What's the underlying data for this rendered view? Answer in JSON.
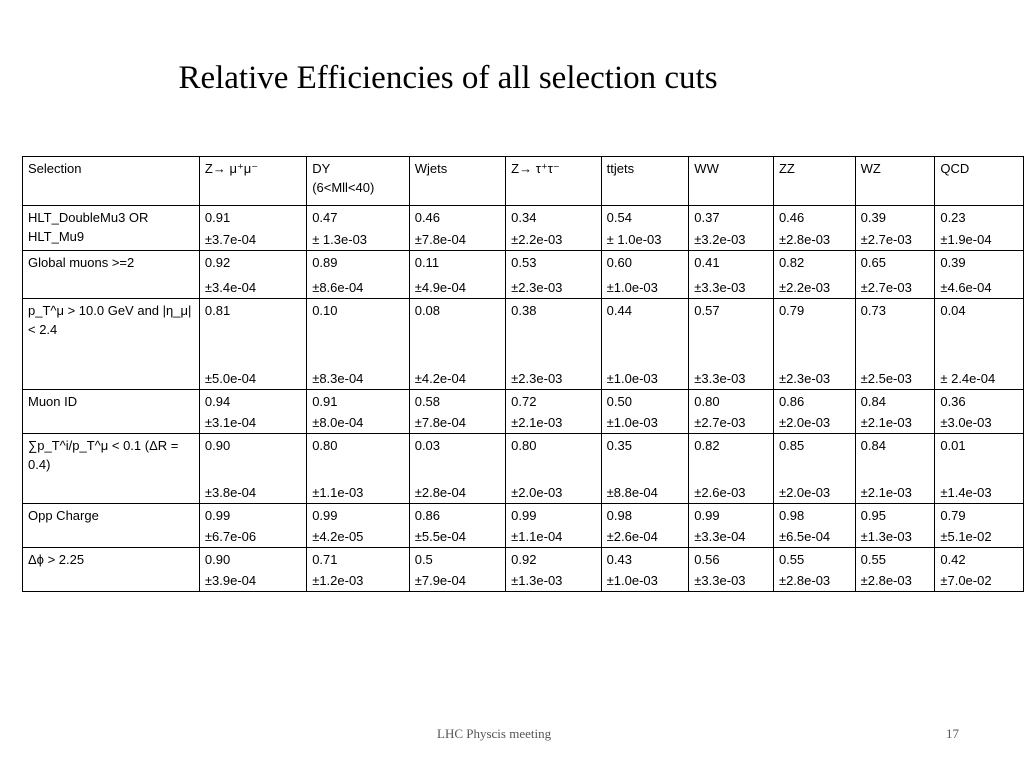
{
  "title": "Relative Efficiencies of all selection cuts",
  "table": {
    "headers": [
      "Selection",
      "Z→ μ⁺μ⁻",
      "DY\n(6<Mll<40)",
      "Wjets",
      "Z→ τ⁺τ⁻",
      "ttjets",
      "WW",
      "ZZ",
      "WZ",
      "QCD"
    ],
    "rows": [
      {
        "selection": "HLT_DoubleMu3    OR HLT_Mu9",
        "cells": [
          {
            "v": "0.91",
            "e": "±3.7e-04"
          },
          {
            "v": "0.47",
            "e": "± 1.3e-03"
          },
          {
            "v": "0.46",
            "e": "±7.8e-04"
          },
          {
            "v": "0.34",
            "e": "±2.2e-03"
          },
          {
            "v": "0.54",
            "e": "± 1.0e-03"
          },
          {
            "v": "0.37",
            "e": "±3.2e-03"
          },
          {
            "v": "0.46",
            "e": "±2.8e-03"
          },
          {
            "v": "0.39",
            "e": "±2.7e-03"
          },
          {
            "v": "0.23",
            "e": "±1.9e-04"
          }
        ]
      },
      {
        "selection": "Global muons >=2",
        "cells": [
          {
            "v": "0.92",
            "e": "±3.4e-04"
          },
          {
            "v": "0.89",
            "e": "±8.6e-04"
          },
          {
            "v": "0.11",
            "e": "±4.9e-04"
          },
          {
            "v": "0.53",
            "e": "±2.3e-03"
          },
          {
            "v": "0.60",
            "e": "±1.0e-03"
          },
          {
            "v": "0.41",
            "e": "±3.3e-03"
          },
          {
            "v": "0.82",
            "e": "±2.2e-03"
          },
          {
            "v": "0.65",
            "e": "±2.7e-03"
          },
          {
            "v": "0.39",
            "e": "±4.6e-04"
          }
        ]
      },
      {
        "selection": "p_T^μ  > 10.0 GeV and |η_μ| < 2.4",
        "cells": [
          {
            "v": "0.81",
            "e": "±5.0e-04"
          },
          {
            "v": "0.10",
            "e": "±8.3e-04"
          },
          {
            "v": "0.08",
            "e": "±4.2e-04"
          },
          {
            "v": "0.38",
            "e": "±2.3e-03"
          },
          {
            "v": "0.44",
            "e": "±1.0e-03"
          },
          {
            "v": "0.57",
            "e": "±3.3e-03"
          },
          {
            "v": "0.79",
            "e": "±2.3e-03"
          },
          {
            "v": "0.73",
            "e": "±2.5e-03"
          },
          {
            "v": "0.04",
            "e": "±    2.4e-04"
          }
        ]
      },
      {
        "selection": "Muon ID",
        "cells": [
          {
            "v": "0.94",
            "e": "±3.1e-04"
          },
          {
            "v": "0.91",
            "e": "±8.0e-04"
          },
          {
            "v": "0.58",
            "e": "±7.8e-04"
          },
          {
            "v": "0.72",
            "e": "±2.1e-03"
          },
          {
            "v": "0.50",
            "e": "±1.0e-03"
          },
          {
            "v": "0.80",
            "e": "±2.7e-03"
          },
          {
            "v": "0.86",
            "e": "±2.0e-03"
          },
          {
            "v": "0.84",
            "e": "±2.1e-03"
          },
          {
            "v": "0.36",
            "e": "±3.0e-03"
          }
        ]
      },
      {
        "selection": "∑p_T^i/p_T^μ   <  0.1 (ΔR = 0.4)",
        "cells": [
          {
            "v": "0.90",
            "e": "±3.8e-04"
          },
          {
            "v": "0.80",
            "e": "±1.1e-03"
          },
          {
            "v": "0.03",
            "e": "±2.8e-04"
          },
          {
            "v": "0.80",
            "e": "±2.0e-03"
          },
          {
            "v": "0.35",
            "e": "±8.8e-04"
          },
          {
            "v": "0.82",
            "e": "±2.6e-03"
          },
          {
            "v": "0.85",
            "e": "±2.0e-03"
          },
          {
            "v": "0.84",
            "e": "±2.1e-03"
          },
          {
            "v": "0.01",
            "e": "±1.4e-03"
          }
        ]
      },
      {
        "selection": "Opp Charge",
        "cells": [
          {
            "v": "0.99",
            "e": "±6.7e-06"
          },
          {
            "v": "0.99",
            "e": "±4.2e-05"
          },
          {
            "v": "0.86",
            "e": "±5.5e-04"
          },
          {
            "v": "0.99",
            "e": "±1.1e-04"
          },
          {
            "v": "0.98",
            "e": "±2.6e-04"
          },
          {
            "v": "0.99",
            "e": "±3.3e-04"
          },
          {
            "v": "0.98",
            "e": "±6.5e-04"
          },
          {
            "v": "0.95",
            "e": "±1.3e-03"
          },
          {
            "v": "0.79",
            "e": "±5.1e-02"
          }
        ]
      },
      {
        "selection": "Δϕ > 2.25",
        "cells": [
          {
            "v": "0.90",
            "e": "±3.9e-04"
          },
          {
            "v": "0.71",
            "e": "±1.2e-03"
          },
          {
            "v": "0.5",
            "e": "±7.9e-04"
          },
          {
            "v": "0.92",
            "e": "±1.3e-03"
          },
          {
            "v": "0.43",
            "e": "±1.0e-03"
          },
          {
            "v": "0.56",
            "e": "±3.3e-03"
          },
          {
            "v": "0.55",
            "e": "±2.8e-03"
          },
          {
            "v": "0.55",
            "e": "±2.8e-03"
          },
          {
            "v": "0.42",
            "e": "±7.0e-02"
          }
        ]
      }
    ]
  },
  "footer": {
    "center_text": "LHC Physcis meeting",
    "page_number": "17"
  }
}
